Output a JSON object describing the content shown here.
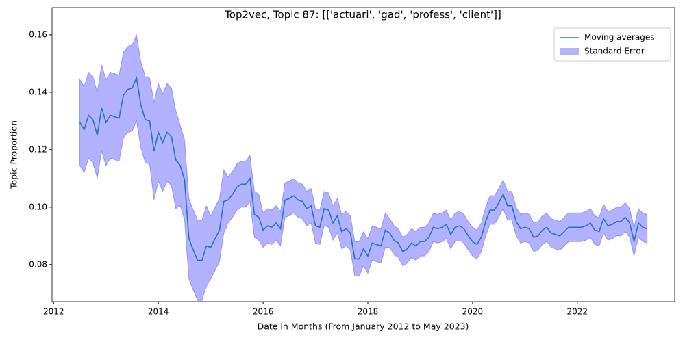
{
  "chart_data": {
    "type": "line",
    "title": "Top2vec, Topic 87: [['actuari', 'gad', 'profess', 'client']]",
    "xlabel": "Date in Months (From January 2012 to May 2023)",
    "ylabel": "Topic Proportion",
    "xlim": [
      2011.97,
      2023.86
    ],
    "ylim": [
      0.0671,
      0.1695
    ],
    "xticks": [
      2012,
      2014,
      2016,
      2018,
      2020,
      2022
    ],
    "yticks": [
      0.08,
      {
        "value": 0.1,
        "label": "0.10"
      },
      0.12,
      0.14,
      0.16
    ],
    "legend": "upper right",
    "x": [
      2012.5,
      2012.583,
      2012.667,
      2012.75,
      2012.833,
      2012.917,
      2013.0,
      2013.083,
      2013.167,
      2013.25,
      2013.333,
      2013.417,
      2013.5,
      2013.583,
      2013.667,
      2013.75,
      2013.833,
      2013.917,
      2014.0,
      2014.083,
      2014.167,
      2014.25,
      2014.333,
      2014.417,
      2014.5,
      2014.583,
      2014.667,
      2014.75,
      2014.833,
      2014.917,
      2015.0,
      2015.083,
      2015.167,
      2015.25,
      2015.333,
      2015.417,
      2015.5,
      2015.583,
      2015.667,
      2015.75,
      2015.833,
      2015.917,
      2016.0,
      2016.083,
      2016.167,
      2016.25,
      2016.333,
      2016.417,
      2016.5,
      2016.583,
      2016.667,
      2016.75,
      2016.833,
      2016.917,
      2017.0,
      2017.083,
      2017.167,
      2017.25,
      2017.333,
      2017.417,
      2017.5,
      2017.583,
      2017.667,
      2017.75,
      2017.833,
      2017.917,
      2018.0,
      2018.083,
      2018.167,
      2018.25,
      2018.333,
      2018.417,
      2018.5,
      2018.583,
      2018.667,
      2018.75,
      2018.833,
      2018.917,
      2019.0,
      2019.083,
      2019.167,
      2019.25,
      2019.333,
      2019.417,
      2019.5,
      2019.583,
      2019.667,
      2019.75,
      2019.833,
      2019.917,
      2020.0,
      2020.083,
      2020.167,
      2020.25,
      2020.333,
      2020.417,
      2020.5,
      2020.583,
      2020.667,
      2020.75,
      2020.833,
      2020.917,
      2021.0,
      2021.083,
      2021.167,
      2021.25,
      2021.333,
      2021.417,
      2021.5,
      2021.583,
      2021.667,
      2021.75,
      2021.833,
      2021.917,
      2022.0,
      2022.083,
      2022.167,
      2022.25,
      2022.333,
      2022.417,
      2022.5,
      2022.583,
      2022.667,
      2022.75,
      2022.833,
      2022.917,
      2023.0,
      2023.083,
      2023.167,
      2023.25,
      2023.333
    ],
    "series": [
      {
        "name": "Moving averages",
        "color": "#1f77b4",
        "values": [
          0.1295,
          0.127,
          0.132,
          0.1305,
          0.125,
          0.1345,
          0.1295,
          0.132,
          0.1315,
          0.131,
          0.139,
          0.141,
          0.1415,
          0.145,
          0.1355,
          0.1305,
          0.13,
          0.1195,
          0.126,
          0.1225,
          0.126,
          0.1245,
          0.1165,
          0.1145,
          0.1095,
          0.089,
          0.085,
          0.0815,
          0.0815,
          0.0865,
          0.086,
          0.089,
          0.092,
          0.102,
          0.1025,
          0.1045,
          0.107,
          0.108,
          0.108,
          0.11,
          0.0975,
          0.0965,
          0.092,
          0.0935,
          0.093,
          0.0945,
          0.0925,
          0.1025,
          0.103,
          0.104,
          0.1025,
          0.102,
          0.0995,
          0.1005,
          0.0935,
          0.093,
          0.0995,
          0.099,
          0.0945,
          0.097,
          0.0915,
          0.0925,
          0.091,
          0.082,
          0.082,
          0.0855,
          0.083,
          0.0875,
          0.087,
          0.0865,
          0.092,
          0.091,
          0.0885,
          0.0875,
          0.0845,
          0.0855,
          0.0875,
          0.0865,
          0.088,
          0.088,
          0.0895,
          0.093,
          0.0925,
          0.093,
          0.094,
          0.0905,
          0.093,
          0.0935,
          0.0925,
          0.09,
          0.088,
          0.087,
          0.0895,
          0.095,
          0.099,
          0.099,
          0.1015,
          0.1045,
          0.1005,
          0.1005,
          0.095,
          0.0925,
          0.093,
          0.0925,
          0.0895,
          0.09,
          0.092,
          0.093,
          0.091,
          0.0905,
          0.09,
          0.0915,
          0.093,
          0.093,
          0.093,
          0.093,
          0.0935,
          0.0945,
          0.092,
          0.0915,
          0.096,
          0.0935,
          0.094,
          0.095,
          0.095,
          0.0965,
          0.0945,
          0.088,
          0.0945,
          0.093,
          0.0925
        ]
      }
    ],
    "band": {
      "name": "Standard Error",
      "color": "#0000ff",
      "opacity": 0.3,
      "errors": [
        0.015,
        0.015,
        0.015,
        0.015,
        0.015,
        0.015,
        0.015,
        0.015,
        0.015,
        0.015,
        0.015,
        0.015,
        0.015,
        0.015,
        0.015,
        0.015,
        0.015,
        0.017,
        0.017,
        0.017,
        0.017,
        0.017,
        0.017,
        0.014,
        0.014,
        0.014,
        0.014,
        0.014,
        0.014,
        0.014,
        0.011,
        0.011,
        0.011,
        0.011,
        0.008,
        0.008,
        0.008,
        0.008,
        0.008,
        0.008,
        0.008,
        0.008,
        0.006,
        0.006,
        0.006,
        0.006,
        0.006,
        0.006,
        0.006,
        0.006,
        0.006,
        0.006,
        0.006,
        0.006,
        0.006,
        0.006,
        0.006,
        0.006,
        0.006,
        0.006,
        0.006,
        0.006,
        0.006,
        0.006,
        0.006,
        0.006,
        0.006,
        0.006,
        0.006,
        0.006,
        0.006,
        0.005,
        0.005,
        0.005,
        0.005,
        0.005,
        0.005,
        0.005,
        0.005,
        0.005,
        0.005,
        0.005,
        0.005,
        0.005,
        0.005,
        0.005,
        0.005,
        0.005,
        0.005,
        0.005,
        0.005,
        0.005,
        0.005,
        0.005,
        0.005,
        0.005,
        0.005,
        0.005,
        0.005,
        0.005,
        0.005,
        0.005,
        0.005,
        0.005,
        0.005,
        0.005,
        0.005,
        0.005,
        0.005,
        0.005,
        0.005,
        0.005,
        0.005,
        0.005,
        0.005,
        0.005,
        0.005,
        0.005,
        0.005,
        0.005,
        0.005,
        0.005,
        0.005,
        0.005,
        0.005,
        0.005,
        0.005,
        0.005,
        0.005,
        0.005,
        0.005
      ]
    }
  }
}
